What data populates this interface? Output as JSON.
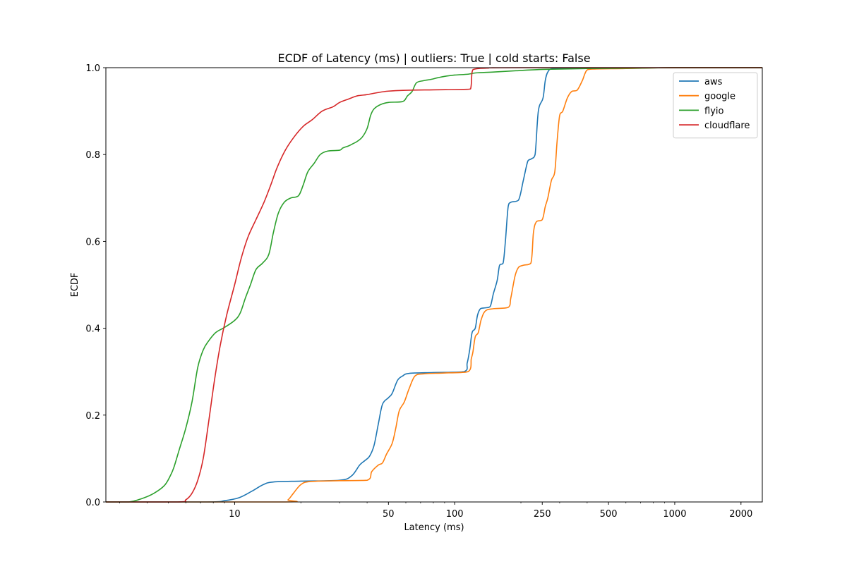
{
  "chart_data": {
    "type": "line",
    "title": "ECDF of Latency (ms) | outliers: True | cold starts: False",
    "xlabel": "Latency (ms)",
    "ylabel": "ECDF",
    "xscale": "log",
    "xlim": [
      2.6,
      2500
    ],
    "ylim": [
      0,
      1
    ],
    "grid": false,
    "legend_position": "top-right",
    "x_ticks": [
      {
        "value": 10,
        "label": "10"
      },
      {
        "value": 50,
        "label": "50"
      },
      {
        "value": 100,
        "label": "100"
      },
      {
        "value": 250,
        "label": "250"
      },
      {
        "value": 500,
        "label": "500"
      },
      {
        "value": 1000,
        "label": "1000"
      },
      {
        "value": 2000,
        "label": "2000"
      }
    ],
    "y_ticks": [
      {
        "value": 0,
        "label": "0.0"
      },
      {
        "value": 0.2,
        "label": "0.2"
      },
      {
        "value": 0.4,
        "label": "0.4"
      },
      {
        "value": 0.6,
        "label": "0.6"
      },
      {
        "value": 0.8,
        "label": "0.8"
      },
      {
        "value": 1.0,
        "label": "1.0"
      }
    ],
    "series": [
      {
        "name": "aws",
        "color": "#1f77b4",
        "points": [
          [
            2.6,
            0
          ],
          [
            7.5,
            0.0
          ],
          [
            9,
            0.003
          ],
          [
            10.5,
            0.01
          ],
          [
            12,
            0.025
          ],
          [
            13.5,
            0.04
          ],
          [
            15,
            0.046
          ],
          [
            20,
            0.048
          ],
          [
            30,
            0.05
          ],
          [
            34,
            0.06
          ],
          [
            37,
            0.085
          ],
          [
            39,
            0.095
          ],
          [
            41,
            0.105
          ],
          [
            43,
            0.13
          ],
          [
            45,
            0.18
          ],
          [
            47,
            0.225
          ],
          [
            50,
            0.24
          ],
          [
            52,
            0.25
          ],
          [
            55,
            0.28
          ],
          [
            58,
            0.29
          ],
          [
            62,
            0.296
          ],
          [
            80,
            0.298
          ],
          [
            110,
            0.3
          ],
          [
            114,
            0.32
          ],
          [
            117,
            0.35
          ],
          [
            120,
            0.39
          ],
          [
            124,
            0.4
          ],
          [
            127,
            0.43
          ],
          [
            131,
            0.445
          ],
          [
            138,
            0.447
          ],
          [
            145,
            0.45
          ],
          [
            150,
            0.48
          ],
          [
            156,
            0.51
          ],
          [
            160,
            0.545
          ],
          [
            166,
            0.55
          ],
          [
            170,
            0.6
          ],
          [
            175,
            0.68
          ],
          [
            180,
            0.69
          ],
          [
            195,
            0.695
          ],
          [
            205,
            0.74
          ],
          [
            215,
            0.785
          ],
          [
            223,
            0.79
          ],
          [
            232,
            0.8
          ],
          [
            240,
            0.9
          ],
          [
            252,
            0.93
          ],
          [
            258,
            0.97
          ],
          [
            265,
            0.99
          ],
          [
            280,
            0.998
          ],
          [
            350,
            0.998
          ],
          [
            600,
            0.999
          ],
          [
            1000,
            1.0
          ],
          [
            2500,
            1.0
          ]
        ]
      },
      {
        "name": "google",
        "color": "#ff7f0e",
        "points": [
          [
            2.6,
            0
          ],
          [
            16.5,
            0
          ],
          [
            17.5,
            0.005
          ],
          [
            18.5,
            0.02
          ],
          [
            20,
            0.04
          ],
          [
            22,
            0.047
          ],
          [
            30,
            0.049
          ],
          [
            40,
            0.05
          ],
          [
            42,
            0.07
          ],
          [
            45,
            0.085
          ],
          [
            47,
            0.09
          ],
          [
            49,
            0.11
          ],
          [
            52,
            0.135
          ],
          [
            54,
            0.17
          ],
          [
            56,
            0.21
          ],
          [
            59,
            0.23
          ],
          [
            62,
            0.26
          ],
          [
            66,
            0.29
          ],
          [
            72,
            0.295
          ],
          [
            90,
            0.297
          ],
          [
            115,
            0.3
          ],
          [
            119,
            0.33
          ],
          [
            121,
            0.345
          ],
          [
            124,
            0.38
          ],
          [
            128,
            0.39
          ],
          [
            132,
            0.42
          ],
          [
            138,
            0.44
          ],
          [
            150,
            0.445
          ],
          [
            175,
            0.448
          ],
          [
            180,
            0.47
          ],
          [
            188,
            0.52
          ],
          [
            195,
            0.54
          ],
          [
            205,
            0.545
          ],
          [
            222,
            0.55
          ],
          [
            228,
            0.62
          ],
          [
            235,
            0.645
          ],
          [
            250,
            0.65
          ],
          [
            258,
            0.68
          ],
          [
            265,
            0.7
          ],
          [
            275,
            0.74
          ],
          [
            285,
            0.76
          ],
          [
            292,
            0.83
          ],
          [
            300,
            0.89
          ],
          [
            310,
            0.9
          ],
          [
            325,
            0.93
          ],
          [
            340,
            0.945
          ],
          [
            360,
            0.948
          ],
          [
            380,
            0.97
          ],
          [
            400,
            0.995
          ],
          [
            440,
            0.997
          ],
          [
            600,
            0.998
          ],
          [
            1000,
            1.0
          ],
          [
            2500,
            1.0
          ]
        ]
      },
      {
        "name": "flyio",
        "color": "#2ca02c",
        "points": [
          [
            2.6,
            0
          ],
          [
            3.3,
            0
          ],
          [
            3.8,
            0.008
          ],
          [
            4.3,
            0.02
          ],
          [
            4.8,
            0.038
          ],
          [
            5.1,
            0.06
          ],
          [
            5.3,
            0.08
          ],
          [
            5.6,
            0.12
          ],
          [
            6.0,
            0.17
          ],
          [
            6.4,
            0.23
          ],
          [
            6.8,
            0.31
          ],
          [
            7.2,
            0.35
          ],
          [
            7.6,
            0.37
          ],
          [
            8.2,
            0.39
          ],
          [
            9.0,
            0.402
          ],
          [
            10.0,
            0.418
          ],
          [
            10.6,
            0.435
          ],
          [
            11.2,
            0.47
          ],
          [
            11.8,
            0.5
          ],
          [
            12.5,
            0.535
          ],
          [
            13.4,
            0.55
          ],
          [
            14.3,
            0.57
          ],
          [
            15.0,
            0.62
          ],
          [
            15.8,
            0.665
          ],
          [
            16.8,
            0.69
          ],
          [
            18.0,
            0.7
          ],
          [
            19.5,
            0.705
          ],
          [
            20.5,
            0.73
          ],
          [
            21.5,
            0.76
          ],
          [
            23,
            0.78
          ],
          [
            24.5,
            0.8
          ],
          [
            26.5,
            0.808
          ],
          [
            30,
            0.81
          ],
          [
            31,
            0.815
          ],
          [
            33,
            0.82
          ],
          [
            34.5,
            0.825
          ],
          [
            36,
            0.83
          ],
          [
            38,
            0.84
          ],
          [
            40,
            0.86
          ],
          [
            41.5,
            0.89
          ],
          [
            43,
            0.905
          ],
          [
            46,
            0.915
          ],
          [
            50,
            0.92
          ],
          [
            58,
            0.922
          ],
          [
            61,
            0.935
          ],
          [
            64,
            0.945
          ],
          [
            67,
            0.965
          ],
          [
            72,
            0.97
          ],
          [
            78,
            0.973
          ],
          [
            84,
            0.977
          ],
          [
            90,
            0.98
          ],
          [
            100,
            0.983
          ],
          [
            115,
            0.985
          ],
          [
            125,
            0.988
          ],
          [
            150,
            0.99
          ],
          [
            190,
            0.993
          ],
          [
            250,
            0.996
          ],
          [
            400,
            0.998
          ],
          [
            700,
            0.999
          ],
          [
            1000,
            1.0
          ],
          [
            2500,
            1.0
          ]
        ]
      },
      {
        "name": "cloudflare",
        "color": "#d62728",
        "points": [
          [
            2.6,
            0
          ],
          [
            5.5,
            0.0
          ],
          [
            6.0,
            0.005
          ],
          [
            6.4,
            0.02
          ],
          [
            6.8,
            0.05
          ],
          [
            7.2,
            0.1
          ],
          [
            7.6,
            0.18
          ],
          [
            8.1,
            0.28
          ],
          [
            8.6,
            0.36
          ],
          [
            9.2,
            0.43
          ],
          [
            10.0,
            0.5
          ],
          [
            10.7,
            0.56
          ],
          [
            11.5,
            0.61
          ],
          [
            12.5,
            0.65
          ],
          [
            13.6,
            0.69
          ],
          [
            14.6,
            0.73
          ],
          [
            15.6,
            0.77
          ],
          [
            17,
            0.81
          ],
          [
            18.6,
            0.84
          ],
          [
            20.5,
            0.865
          ],
          [
            22.5,
            0.88
          ],
          [
            25,
            0.9
          ],
          [
            28,
            0.91
          ],
          [
            30,
            0.92
          ],
          [
            33,
            0.928
          ],
          [
            36,
            0.935
          ],
          [
            40,
            0.938
          ],
          [
            44,
            0.942
          ],
          [
            50,
            0.946
          ],
          [
            60,
            0.948
          ],
          [
            80,
            0.949
          ],
          [
            110,
            0.95
          ],
          [
            118,
            0.951
          ],
          [
            120,
            0.99
          ],
          [
            124,
            0.997
          ],
          [
            140,
            0.999
          ],
          [
            200,
            1.0
          ],
          [
            2500,
            1.0
          ]
        ]
      }
    ]
  }
}
